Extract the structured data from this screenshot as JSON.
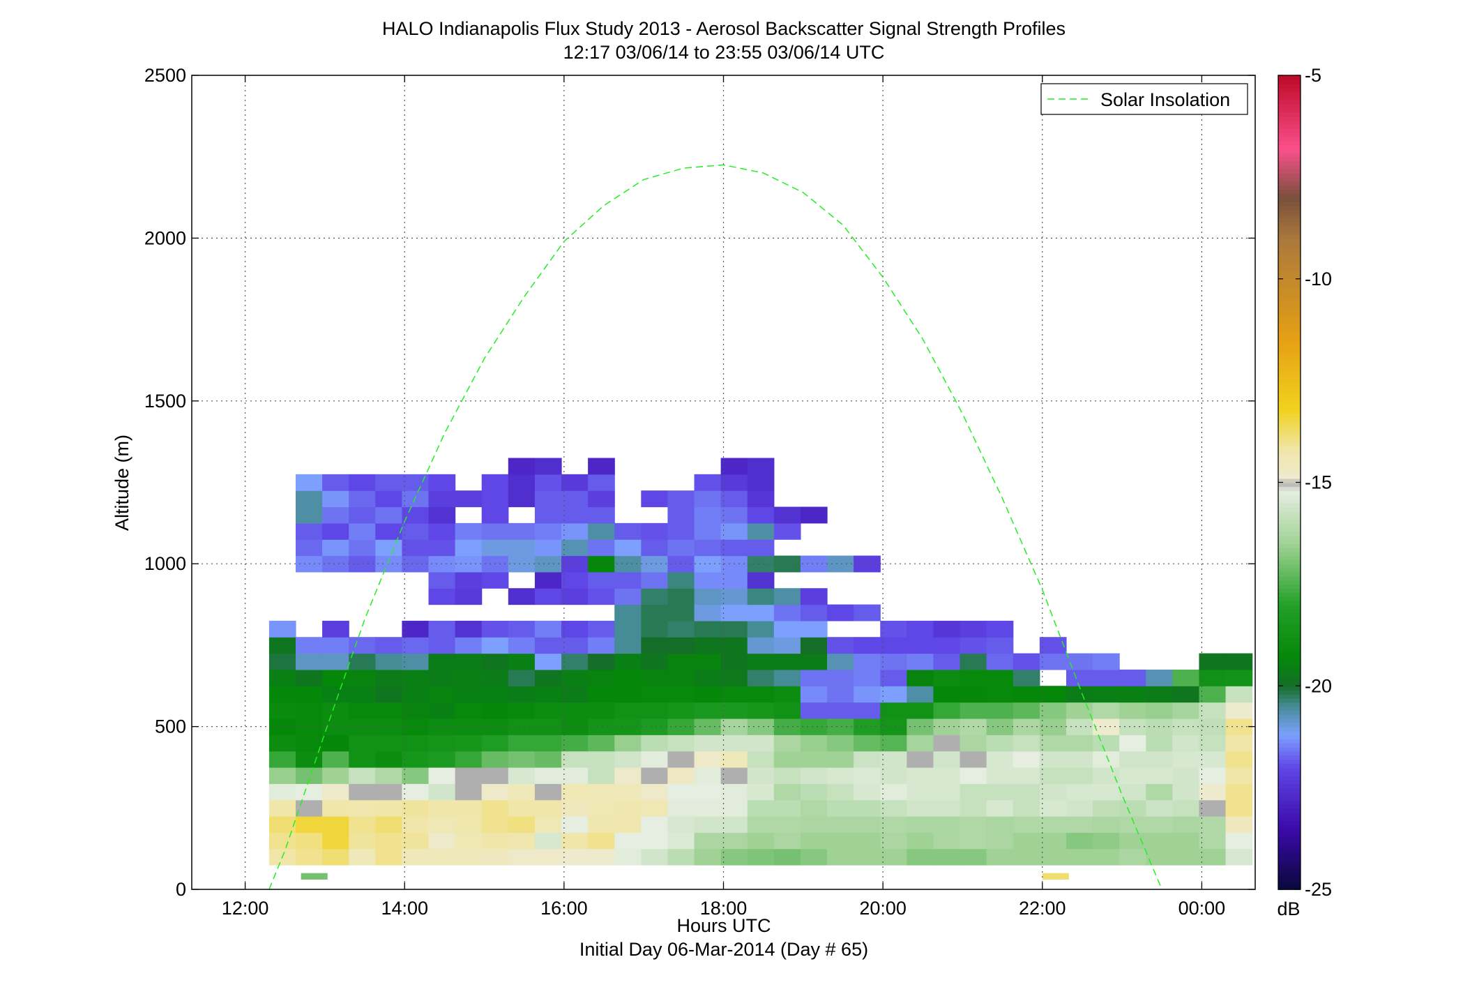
{
  "chart_data": {
    "type": "heatmap",
    "title": "HALO Indianapolis Flux Study 2013 - Aerosol Backscatter Signal Strength Profiles",
    "subtitle": "12:17 03/06/14 to 23:55 03/06/14  UTC",
    "xlabel": "Hours UTC",
    "xlabel2": "Initial Day 06-Mar-2014 (Day # 65)",
    "ylabel": "Altitude (m)",
    "xlim": [
      11.33,
      24.67
    ],
    "ylim": [
      0,
      2500
    ],
    "x_ticks": [
      12,
      14,
      16,
      18,
      20,
      22,
      24
    ],
    "x_tick_labels": [
      "12:00",
      "14:00",
      "16:00",
      "18:00",
      "20:00",
      "22:00",
      "00:00"
    ],
    "y_ticks": [
      0,
      500,
      1000,
      1500,
      2000,
      2500
    ],
    "y_tick_labels": [
      "0",
      "500",
      "1000",
      "1500",
      "2000",
      "2500"
    ],
    "grid": true,
    "legend": {
      "entries": [
        "Solar Insolation"
      ],
      "placement": "top-right"
    },
    "colorbar": {
      "label": "dB",
      "range": [
        -25,
        -5
      ],
      "ticks": [
        -5,
        -10,
        -15,
        -20,
        -25
      ],
      "tick_labels": [
        "-5",
        "-10",
        "-15",
        "-20",
        "-25"
      ]
    },
    "heatmap": {
      "x_start": 12.3,
      "x_step": 0.3333,
      "y_start": 75,
      "y_step": 50,
      "note_null": "null = no data",
      "rows": [
        [
          -14.2,
          -14.0,
          -13.8,
          -14.5,
          -14.0,
          -14.5,
          -14.5,
          -14.5,
          -14.6,
          -14.8,
          -14.8,
          -14.9,
          -14.9,
          -15.3,
          -15.6,
          -16.0,
          -16.5,
          -16.8,
          -16.9,
          -17.0,
          -16.8,
          -16.5,
          -16.5,
          -16.5,
          -16.8,
          -16.8,
          -16.8,
          -16.5,
          -16.5,
          -16.5,
          -16.5,
          -16.5,
          -16.3,
          -16.5,
          -16.5,
          -16.5,
          -15.5
        ],
        [
          -14.0,
          -13.9,
          -13.4,
          -14.1,
          -14.0,
          -14.1,
          -14.8,
          -14.4,
          -14.2,
          -14.3,
          -15.5,
          -14.2,
          -14.0,
          -15.2,
          -15.2,
          -15.4,
          -16.3,
          -16.3,
          -16.5,
          -16.3,
          -16.5,
          -16.5,
          -16.5,
          -16.3,
          -16.5,
          -16.3,
          -16.2,
          -16.3,
          -16.5,
          -16.5,
          -16.8,
          -16.7,
          -16.5,
          -16.5,
          -16.5,
          -16.2,
          -15.2
        ],
        [
          -13.8,
          -13.4,
          -13.4,
          -14.0,
          -13.8,
          -14.2,
          -14.4,
          -14.3,
          -14.0,
          -13.9,
          -14.4,
          -15.2,
          -14.3,
          -14.3,
          -15.2,
          -15.5,
          -15.6,
          -15.6,
          -16.2,
          -16.2,
          -16.3,
          -16.3,
          -16.3,
          -16.2,
          -16.3,
          -16.3,
          -16.2,
          -16.3,
          -16.2,
          -16.2,
          -16.2,
          -16.3,
          -16.2,
          -16.2,
          -16.3,
          -16.2,
          -14.6
        ],
        [
          -14.2,
          -15.0,
          -14.2,
          -14.3,
          -14.2,
          -14.1,
          -14.2,
          -14.2,
          -14.0,
          -14.2,
          -14.2,
          -14.6,
          -14.4,
          -14.3,
          -14.4,
          -15.3,
          -15.3,
          -15.3,
          -16.0,
          -16.0,
          -16.2,
          -16.0,
          -16.0,
          -15.8,
          -15.6,
          -15.6,
          -15.8,
          -15.5,
          -15.8,
          -15.5,
          -15.6,
          -15.9,
          -16.0,
          -15.7,
          -15.8,
          -15.0,
          -14.0
        ],
        [
          -15.3,
          -15.2,
          -14.8,
          -15.0,
          -15.0,
          -15.2,
          -15.6,
          -15.0,
          -14.8,
          -14.5,
          -15.0,
          -14.4,
          -14.5,
          -14.5,
          -14.8,
          -15.2,
          -15.2,
          -15.3,
          -15.5,
          -16.2,
          -16.0,
          -15.8,
          -15.5,
          -15.3,
          -15.5,
          -15.5,
          -15.8,
          -15.8,
          -15.8,
          -15.6,
          -15.5,
          -15.5,
          -15.6,
          -16.2,
          -15.6,
          -14.9,
          -14.0
        ],
        [
          -16.6,
          -17.0,
          -16.5,
          -15.8,
          -16.2,
          -16.8,
          -15.2,
          -15.0,
          -15.0,
          -15.5,
          -15.3,
          -15.3,
          -15.8,
          -14.8,
          -15.0,
          -14.7,
          -15.3,
          -15.0,
          -15.6,
          -15.8,
          -15.6,
          -15.5,
          -15.4,
          -15.6,
          -15.5,
          -15.5,
          -15.2,
          -15.5,
          -15.5,
          -15.8,
          -15.8,
          -15.6,
          -15.5,
          -15.5,
          -15.6,
          -15.2,
          -14.2
        ],
        [
          -17.8,
          -19.0,
          -17.5,
          -18.8,
          -19.0,
          -18.5,
          -18.3,
          -17.8,
          -17.2,
          -17.0,
          -17.2,
          -15.8,
          -15.8,
          -15.6,
          -15.3,
          -15.0,
          -14.8,
          -14.5,
          -15.8,
          -16.5,
          -16.5,
          -16.5,
          -15.7,
          -15.6,
          -15.0,
          -15.6,
          -15.0,
          -15.5,
          -15.2,
          -15.6,
          -15.6,
          -15.3,
          -15.6,
          -15.6,
          -15.5,
          -15.5,
          -14.0
        ],
        [
          -19.0,
          -19.2,
          -19.3,
          -18.8,
          -18.8,
          -18.8,
          -18.6,
          -18.5,
          -18.2,
          -17.8,
          -17.8,
          -17.6,
          -17.3,
          -16.6,
          -16.0,
          -15.8,
          -15.6,
          -15.6,
          -15.6,
          -16.3,
          -16.6,
          -16.8,
          -17.2,
          -17.4,
          -16.4,
          -15.0,
          -16.3,
          -16.0,
          -15.8,
          -16.2,
          -16.2,
          -16.0,
          -15.2,
          -16.0,
          -15.6,
          -15.8,
          -14.2
        ],
        [
          -19.3,
          -19.2,
          -19.0,
          -19.0,
          -19.0,
          -19.2,
          -19.0,
          -19.0,
          -19.0,
          -18.8,
          -18.8,
          -19.0,
          -18.7,
          -18.6,
          -18.3,
          -17.8,
          -17.2,
          -16.4,
          -16.8,
          -17.6,
          -17.8,
          -17.6,
          -18.2,
          -18.6,
          -17.0,
          -16.5,
          -16.2,
          -16.8,
          -16.3,
          -16.6,
          -15.8,
          -14.9,
          -15.8,
          -16.0,
          -15.8,
          -15.9,
          -14.0
        ],
        [
          -19.1,
          -19.2,
          -19.0,
          -19.2,
          -19.2,
          -19.4,
          -19.5,
          -19.2,
          -19.3,
          -19.2,
          -19.0,
          -19.0,
          -19.0,
          -18.8,
          -18.8,
          -18.6,
          -18.4,
          -18.4,
          -18.5,
          -18.8,
          -21.8,
          -21.8,
          -21.8,
          -18.8,
          -18.8,
          -17.8,
          -17.5,
          -17.5,
          -17.3,
          -16.8,
          -16.5,
          -16.2,
          -16.5,
          -16.6,
          -16.4,
          -15.8,
          -14.9
        ],
        [
          -19.3,
          -19.3,
          -19.5,
          -19.5,
          -19.8,
          -19.5,
          -19.4,
          -19.5,
          -19.5,
          -19.6,
          -19.5,
          -19.6,
          -19.3,
          -19.3,
          -19.2,
          -19.2,
          -19.3,
          -19.2,
          -19.2,
          -19.0,
          -21.4,
          -21.6,
          -21.3,
          -21.2,
          -20.6,
          -19.3,
          -19.3,
          -19.2,
          -19.3,
          -19.3,
          -19.6,
          -19.5,
          -19.5,
          -19.6,
          -19.8,
          -17.5,
          -15.8
        ],
        [
          -19.5,
          -19.8,
          -19.3,
          -19.4,
          -19.6,
          -19.5,
          -19.6,
          -19.5,
          -19.6,
          -20.2,
          -19.8,
          -19.5,
          -19.4,
          -19.3,
          -19.4,
          -19.4,
          -19.6,
          -19.7,
          -20.3,
          -20.5,
          -21.6,
          -21.6,
          -21.5,
          -21.8,
          -19.4,
          -19.0,
          -19.2,
          -19.2,
          -20.3,
          null,
          -21.8,
          -21.8,
          -21.8,
          -20.7,
          -17.5,
          -18.8,
          -18.7
        ],
        [
          -20.1,
          -20.8,
          -20.8,
          -20.2,
          -20.5,
          -20.6,
          -19.6,
          -19.6,
          -19.8,
          -19.5,
          -21.2,
          -20.3,
          -20.0,
          -19.5,
          -19.8,
          -19.4,
          -19.4,
          -19.8,
          -19.6,
          -19.6,
          -19.6,
          -20.7,
          -21.5,
          -21.6,
          -21.5,
          -21.8,
          -20.2,
          -21.7,
          -21.9,
          -21.6,
          -21.6,
          -21.5,
          null,
          null,
          null,
          -19.8,
          -19.8
        ],
        [
          -19.8,
          -21.5,
          -21.5,
          -21.7,
          -21.8,
          -21.7,
          -21.8,
          -21.5,
          -21.2,
          -21.5,
          -21.8,
          -21.8,
          -21.5,
          -20.5,
          -20.0,
          -20.0,
          -19.8,
          -19.8,
          -20.9,
          -21.0,
          -20.0,
          -21.9,
          -22.0,
          -22.0,
          -22.0,
          -22.0,
          -21.9,
          -21.8,
          null,
          -21.9,
          null,
          null,
          null,
          null,
          null,
          null,
          null
        ],
        [
          -21.3,
          null,
          -22.2,
          null,
          null,
          -22.8,
          -21.8,
          -22.5,
          -21.9,
          -21.8,
          -21.5,
          -22.0,
          -21.8,
          -20.5,
          -20.2,
          -20.3,
          -20.2,
          -20.2,
          -20.5,
          -21.2,
          -21.2,
          null,
          null,
          -21.9,
          -22.0,
          -22.4,
          -22.2,
          -22.0,
          null,
          null,
          null,
          null,
          null,
          null,
          null,
          null,
          null
        ],
        [
          null,
          null,
          null,
          null,
          null,
          null,
          null,
          null,
          null,
          null,
          null,
          null,
          null,
          -20.5,
          -20.2,
          -20.2,
          -21.0,
          -21.2,
          -21.2,
          -21.6,
          -21.8,
          -22.0,
          -21.8,
          null,
          null,
          null,
          null,
          null,
          null,
          null,
          null,
          null,
          null,
          null,
          null,
          null,
          null
        ],
        [
          null,
          null,
          null,
          null,
          null,
          null,
          -22.0,
          -22.3,
          null,
          -22.6,
          -22.0,
          -22.2,
          -21.9,
          -21.6,
          -20.3,
          -20.2,
          -20.8,
          -20.9,
          -20.4,
          -20.6,
          -22.2,
          null,
          null,
          null,
          null,
          null,
          null,
          null,
          null,
          null,
          null,
          null,
          null,
          null,
          null,
          null,
          null
        ],
        [
          null,
          null,
          null,
          null,
          null,
          null,
          -21.8,
          -22.2,
          -22.0,
          null,
          -22.8,
          -22.0,
          -21.8,
          -21.8,
          -21.6,
          -20.4,
          -21.4,
          -21.4,
          -22.5,
          null,
          null,
          null,
          null,
          null,
          null,
          null,
          null,
          null,
          null,
          null,
          null,
          null,
          null,
          null,
          null,
          null,
          null
        ],
        [
          null,
          -21.4,
          -21.6,
          -21.8,
          -21.4,
          -21.7,
          -21.4,
          -21.3,
          -21.6,
          -21.0,
          -20.8,
          -22.2,
          -19.3,
          -20.6,
          -21.0,
          -21.8,
          -21.2,
          -21.4,
          -20.3,
          -20.2,
          -21.5,
          -20.8,
          -22.2,
          null,
          null,
          null,
          null,
          null,
          null,
          null,
          null,
          null,
          null,
          null,
          null,
          null,
          null
        ],
        [
          null,
          -21.7,
          -21.3,
          -21.6,
          -21.2,
          -21.9,
          -21.9,
          -21.2,
          -21.0,
          -21.0,
          -21.3,
          -20.7,
          -21.6,
          -21.2,
          -21.8,
          -21.6,
          -21.7,
          -21.8,
          -21.8,
          null,
          null,
          null,
          null,
          null,
          null,
          null,
          null,
          null,
          null,
          null,
          null,
          null,
          null,
          null,
          null,
          null,
          null
        ],
        [
          null,
          -21.8,
          -22.0,
          -21.5,
          -22.0,
          -21.8,
          -22.0,
          -21.5,
          -21.6,
          -21.6,
          -21.5,
          -21.3,
          -20.6,
          -21.8,
          -21.9,
          -21.8,
          -21.5,
          -21.3,
          -20.6,
          -21.9,
          null,
          null,
          null,
          null,
          null,
          null,
          null,
          null,
          null,
          null,
          null,
          null,
          null,
          null,
          null,
          null,
          null
        ],
        [
          null,
          -20.6,
          -21.6,
          -21.8,
          -21.6,
          -22.0,
          -22.5,
          null,
          -22.0,
          null,
          -21.8,
          -21.8,
          -21.8,
          null,
          null,
          -21.8,
          -21.5,
          -21.6,
          -22.0,
          -22.5,
          -22.8,
          null,
          null,
          null,
          null,
          null,
          null,
          null,
          null,
          null,
          null,
          null,
          null,
          null,
          null,
          null,
          null
        ],
        [
          null,
          -20.6,
          -21.3,
          -21.7,
          -22.0,
          -21.6,
          -22.2,
          -22.2,
          -22.0,
          -22.6,
          -21.8,
          -21.8,
          -22.2,
          null,
          -22.0,
          -21.8,
          -21.6,
          -21.8,
          -22.4,
          null,
          null,
          null,
          null,
          null,
          null,
          null,
          null,
          null,
          null,
          null,
          null,
          null,
          null,
          null,
          null,
          null,
          null
        ],
        [
          null,
          -21.2,
          -21.8,
          -22.0,
          -21.8,
          -21.8,
          -22.0,
          null,
          -22.0,
          -22.6,
          -21.9,
          -22.3,
          -21.8,
          null,
          null,
          null,
          -21.9,
          -22.3,
          -22.6,
          null,
          null,
          null,
          null,
          null,
          null,
          null,
          null,
          null,
          null,
          null,
          null,
          null,
          null,
          null,
          null,
          null,
          null
        ],
        [
          null,
          null,
          null,
          null,
          null,
          null,
          null,
          null,
          null,
          -22.8,
          -22.6,
          null,
          -22.8,
          null,
          null,
          null,
          null,
          -22.8,
          -22.6,
          null,
          null,
          null,
          null,
          null,
          null,
          null,
          null,
          null,
          null,
          null,
          null,
          null,
          null,
          null,
          null,
          null,
          null
        ]
      ],
      "extra_cells": [
        {
          "x": 12.7,
          "y": 50,
          "value": -17.0
        },
        {
          "x": 22.0,
          "y": 50,
          "value": -13.8
        }
      ]
    },
    "series": [
      {
        "name": "Solar Insolation",
        "style": "dashed",
        "color": "#22ee22",
        "points": [
          [
            12.3,
            0
          ],
          [
            12.5,
            120
          ],
          [
            13.0,
            480
          ],
          [
            13.5,
            830
          ],
          [
            14.0,
            1130
          ],
          [
            14.5,
            1400
          ],
          [
            15.0,
            1630
          ],
          [
            15.5,
            1820
          ],
          [
            16.0,
            1990
          ],
          [
            16.5,
            2100
          ],
          [
            17.0,
            2180
          ],
          [
            17.5,
            2215
          ],
          [
            18.0,
            2225
          ],
          [
            18.5,
            2200
          ],
          [
            19.0,
            2140
          ],
          [
            19.5,
            2040
          ],
          [
            20.0,
            1880
          ],
          [
            20.5,
            1690
          ],
          [
            21.0,
            1460
          ],
          [
            21.5,
            1200
          ],
          [
            22.0,
            920
          ],
          [
            22.5,
            600
          ],
          [
            23.0,
            290
          ],
          [
            23.5,
            0
          ]
        ]
      }
    ]
  }
}
